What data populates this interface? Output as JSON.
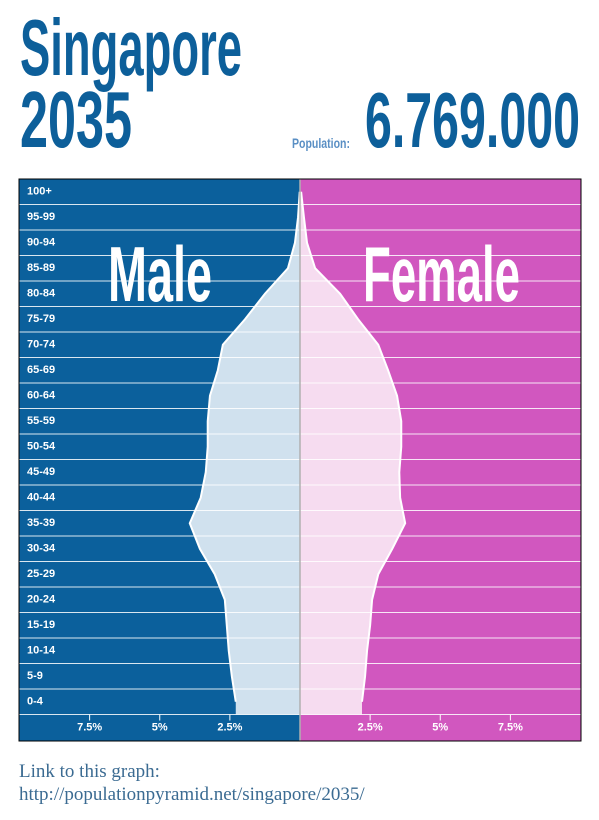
{
  "chart_data": {
    "type": "pyramid",
    "title": "Singapore",
    "subtitle": "2035",
    "population_label": "Population:",
    "population": "6.769.000",
    "categories": [
      "0-4",
      "5-9",
      "10-14",
      "15-19",
      "20-24",
      "25-29",
      "30-34",
      "35-39",
      "40-44",
      "45-49",
      "50-54",
      "55-59",
      "60-64",
      "65-69",
      "70-74",
      "75-79",
      "80-84",
      "85-89",
      "90-94",
      "95-99",
      "100+"
    ],
    "series": [
      {
        "name": "Male",
        "side": "left",
        "color": "#0b609c",
        "fill": "#d0e1ee",
        "values": [
          2.29,
          2.43,
          2.54,
          2.61,
          2.68,
          3.04,
          3.57,
          3.93,
          3.54,
          3.36,
          3.29,
          3.29,
          3.21,
          2.93,
          2.75,
          1.96,
          1.25,
          0.43,
          0.18,
          0.07,
          0.01
        ]
      },
      {
        "name": "Female",
        "side": "right",
        "color": "#d157bf",
        "fill": "#f6dcf0",
        "values": [
          2.21,
          2.32,
          2.39,
          2.5,
          2.57,
          2.79,
          3.29,
          3.75,
          3.57,
          3.54,
          3.61,
          3.61,
          3.46,
          3.14,
          2.79,
          2.07,
          1.43,
          0.54,
          0.25,
          0.14,
          0.04
        ]
      }
    ],
    "xlim": [
      0,
      10
    ],
    "xticks": [
      {
        "value": 2.5,
        "label": "2.5%"
      },
      {
        "value": 5,
        "label": "5%"
      },
      {
        "value": 7.5,
        "label": "7.5%"
      }
    ],
    "link_label": "Link to this graph:",
    "link_url": "http://populationpyramid.net/singapore/2035/"
  }
}
